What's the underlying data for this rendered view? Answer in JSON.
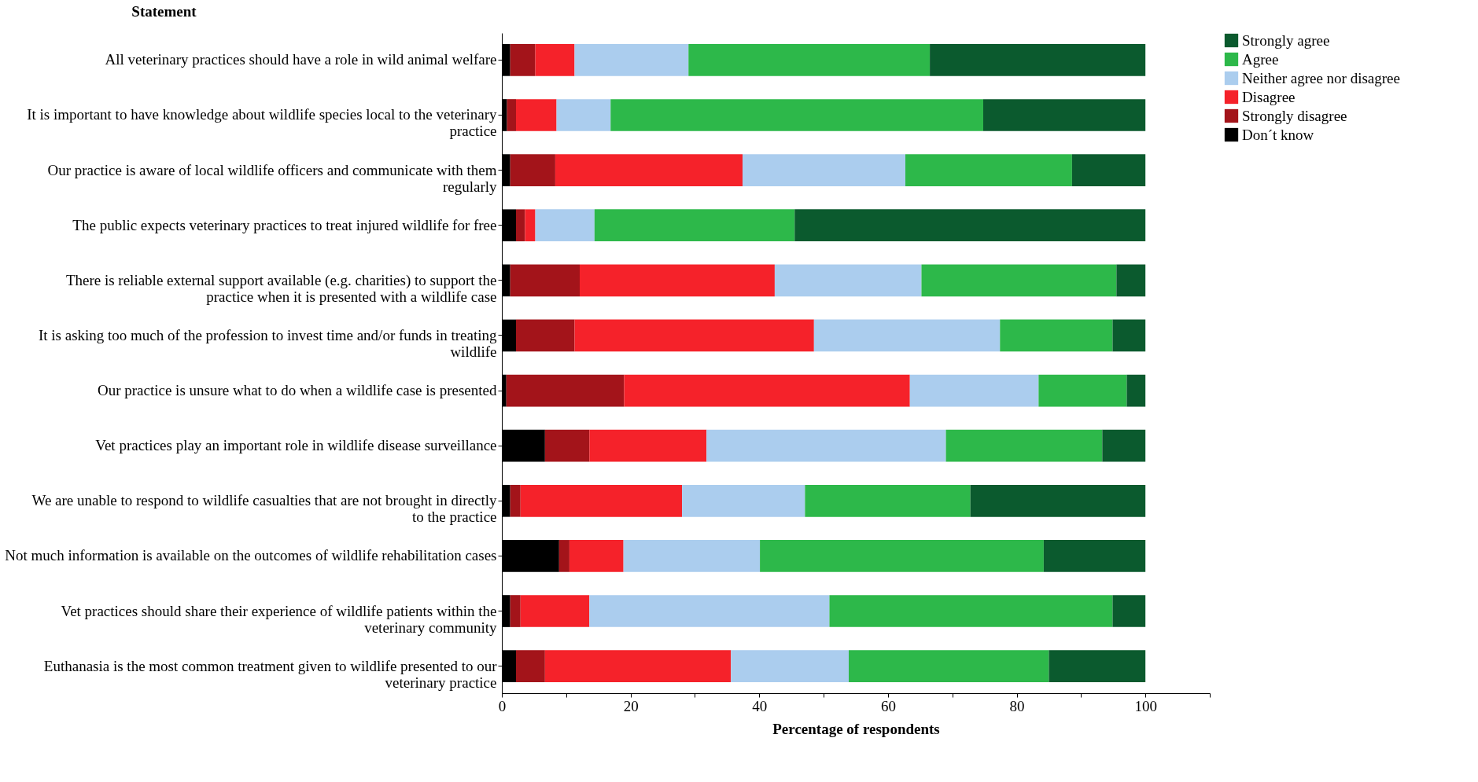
{
  "chart_data": {
    "type": "bar",
    "orientation": "horizontal",
    "stacked": true,
    "ylabel": "Statement",
    "xlabel": "Percentage of respondents",
    "categories": [
      "All veterinary practices should have a role in wild animal welfare",
      "It is important to have knowledge about wildlife species local to the veterinary practice",
      "Our practice is aware of local wildlife officers and communicate with them regularly",
      "The public expects veterinary practices to treat injured wildlife for free",
      "There is reliable external support available (e.g. charities) to support the practice when it is presented with a wildlife case",
      "It is asking too much of the profession to invest time and/or funds in treating wildlife",
      "Our practice is unsure what to do when a wildlife case is presented",
      "Vet practices play an important role in wildlife disease surveillance",
      "We are unable to respond to wildlife casualties that are not brought in directly to the practice",
      "Not much information is available on the outcomes of wildlife rehabilitation cases",
      "Vet practices should share their experience of wildlife patients within the veterinary community",
      "Euthanasia is the most common treatment given to wildlife presented to our veterinary practice"
    ],
    "series": [
      {
        "name": "Don´t know",
        "color": "#000000",
        "values": [
          1.3,
          0.8,
          1.3,
          2.2,
          1.3,
          2.2,
          0.7,
          6.7,
          1.3,
          8.9,
          1.3,
          2.2
        ]
      },
      {
        "name": "Strongly disagree",
        "color": "#a3141a",
        "values": [
          3.9,
          1.4,
          7.0,
          1.4,
          10.8,
          9.1,
          18.3,
          6.9,
          1.6,
          1.6,
          1.6,
          4.5
        ]
      },
      {
        "name": "Disagree",
        "color": "#f5222a",
        "values": [
          6.1,
          6.3,
          29.1,
          1.6,
          30.3,
          37.2,
          44.4,
          18.2,
          25.1,
          8.4,
          10.7,
          28.9
        ]
      },
      {
        "name": "Neither agree nor disagree",
        "color": "#abcdee",
        "values": [
          17.7,
          8.4,
          25.3,
          9.2,
          22.8,
          28.9,
          20.0,
          37.2,
          19.1,
          21.2,
          37.3,
          18.3
        ]
      },
      {
        "name": "Agree",
        "color": "#2db84a",
        "values": [
          37.5,
          57.9,
          25.9,
          31.1,
          30.3,
          17.5,
          13.7,
          24.3,
          25.7,
          44.1,
          44.0,
          31.1
        ]
      },
      {
        "name": "Strongly agree",
        "color": "#0b5a2e",
        "values": [
          33.5,
          25.2,
          11.4,
          54.5,
          4.5,
          5.1,
          2.9,
          6.7,
          27.2,
          15.8,
          5.1,
          15.0
        ]
      }
    ],
    "xlim": [
      0,
      110
    ],
    "xticks": [
      0,
      {
        "value": 10,
        "label": null
      },
      20,
      {
        "value": 30,
        "label": null
      },
      40,
      {
        "value": 50,
        "label": null
      },
      60,
      {
        "value": 70,
        "label": null
      },
      80,
      {
        "value": 90,
        "label": null
      },
      100,
      {
        "value": 110,
        "label": null
      }
    ],
    "grid": false,
    "legend": "top right"
  }
}
